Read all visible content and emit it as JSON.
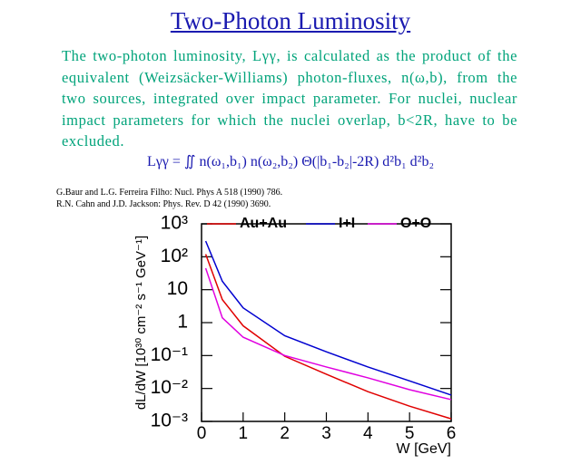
{
  "header": {
    "title": "Two-Photon Luminosity"
  },
  "paragraph": "The two-photon luminosity, Lγγ, is calculated as the product of the equivalent (Weizsäcker-Williams) photon-fluxes, n(ω,b), from the two sources, integrated over impact parameter. For nuclei, nuclear impact parameters for which the nuclei overlap, b<2R, have to be excluded.",
  "formula": "Lγγ = ∬ n(ω₁,b₁) n(ω₂,b₂) Θ(|b₁-b₂|-2R) d²b₁ d²b₂",
  "references": [
    "G.Baur and L.G. Ferreira Filho: Nucl. Phys A 518 (1990) 786.",
    "R.N. Cahn and J.D. Jackson: Phys. Rev. D 42 (1990) 3690."
  ],
  "chart_data": {
    "type": "line",
    "x_label": "W [GeV]",
    "y_label": "dL/dW [10³⁰ cm⁻² s⁻¹ GeV⁻¹]",
    "log_y": true,
    "x": [
      0.1,
      0.5,
      1,
      2,
      3,
      4,
      5,
      6
    ],
    "series": [
      {
        "name": "Au+Au",
        "color": "#e00000",
        "values": [
          120,
          5,
          0.8,
          0.095,
          0.027,
          0.008,
          0.0029,
          0.0012
        ]
      },
      {
        "name": "I+I",
        "color": "#0000d0",
        "values": [
          300,
          18,
          2.8,
          0.4,
          0.13,
          0.045,
          0.017,
          0.0063
        ]
      },
      {
        "name": "O+O",
        "color": "#e000e0",
        "values": [
          45,
          1.4,
          0.36,
          0.1,
          0.045,
          0.021,
          0.0092,
          0.0046
        ]
      }
    ],
    "xlim": [
      0,
      6
    ],
    "xticks": [
      0,
      1,
      2,
      3,
      4,
      5,
      6
    ],
    "ylim": [
      0.001,
      1000
    ],
    "yticks": [
      {
        "value": 1000,
        "label": "10³"
      },
      {
        "value": 100,
        "label": "10²"
      },
      10,
      1,
      {
        "value": 0.1,
        "label": "10⁻¹"
      },
      {
        "value": 0.01,
        "label": "10⁻²"
      },
      {
        "value": 0.001,
        "label": "10⁻³"
      }
    ]
  }
}
